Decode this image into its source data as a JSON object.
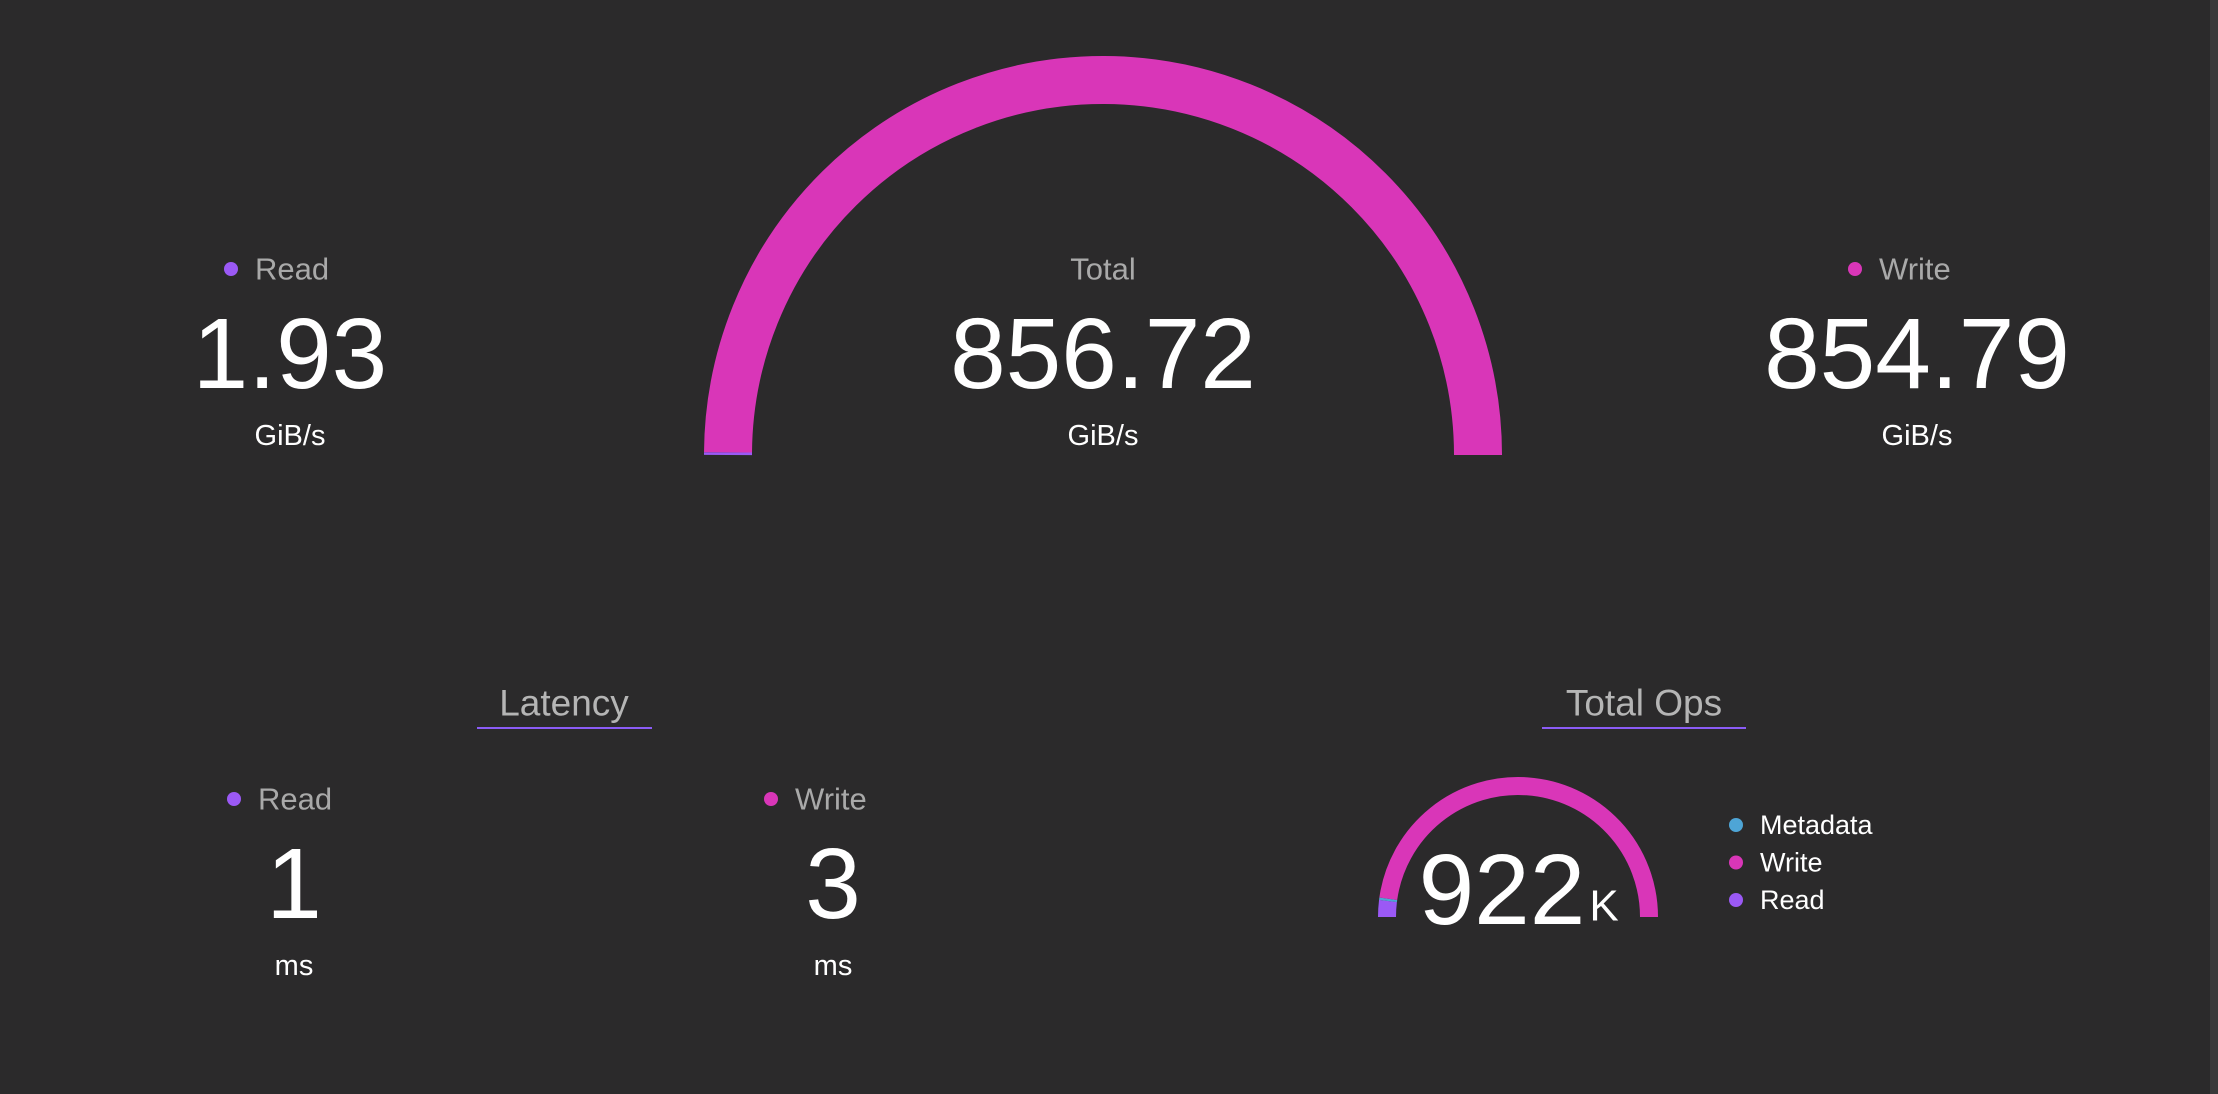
{
  "throughput": {
    "read": {
      "label": "Read",
      "value": 1.93,
      "unit": "GiB/s",
      "color": "#9b59f5"
    },
    "total": {
      "label": "Total",
      "value": 856.72,
      "unit": "GiB/s"
    },
    "write": {
      "label": "Write",
      "value": 854.79,
      "unit": "GiB/s",
      "color": "#d936b8"
    }
  },
  "latency": {
    "title": "Latency",
    "read": {
      "label": "Read",
      "value": 1,
      "unit": "ms",
      "color": "#9b59f5"
    },
    "write": {
      "label": "Write",
      "value": 3,
      "unit": "ms",
      "color": "#d936b8"
    }
  },
  "total_ops": {
    "title": "Total Ops",
    "value": 922,
    "unit": "K",
    "segments": [
      {
        "name": "Metadata",
        "color": "#4ea5d6",
        "value": 5
      },
      {
        "name": "Write",
        "color": "#d936b8",
        "value": 881
      },
      {
        "name": "Read",
        "color": "#9b59f5",
        "value": 36
      }
    ]
  }
}
